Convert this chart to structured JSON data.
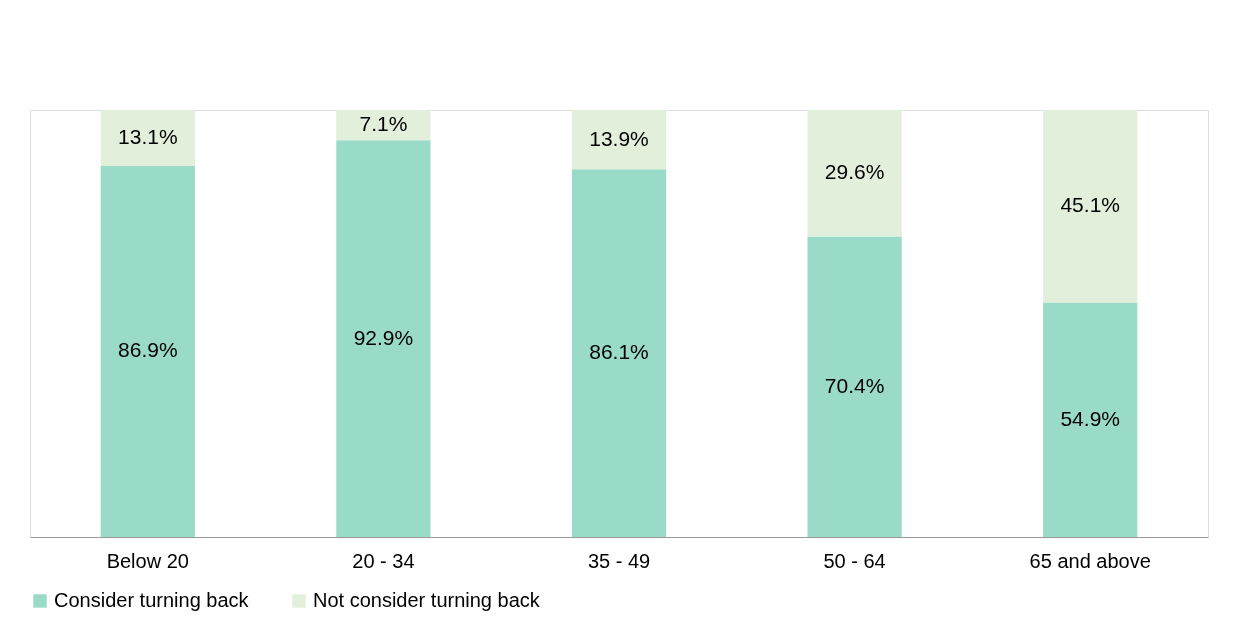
{
  "chart_data": {
    "type": "bar",
    "stacked": true,
    "legend": "bottom",
    "categories": [
      "Below 20",
      "20 - 34",
      "35 - 49",
      "50 - 64",
      "65  and above"
    ],
    "series": [
      {
        "name": "Consider turning back",
        "color": "#99dbc8",
        "values": [
          86.9,
          92.9,
          86.1,
          70.4,
          54.9
        ],
        "value_labels": [
          "86.9%",
          "92.9%",
          "86.1%",
          "70.4%",
          "54.9%"
        ]
      },
      {
        "name": "Not consider turning back",
        "color": "#e2efda",
        "values": [
          13.1,
          7.1,
          13.9,
          29.6,
          45.1
        ],
        "value_labels": [
          "13.1%",
          "7.1%",
          "13.9%",
          "29.6%",
          "45.1%"
        ]
      }
    ]
  }
}
